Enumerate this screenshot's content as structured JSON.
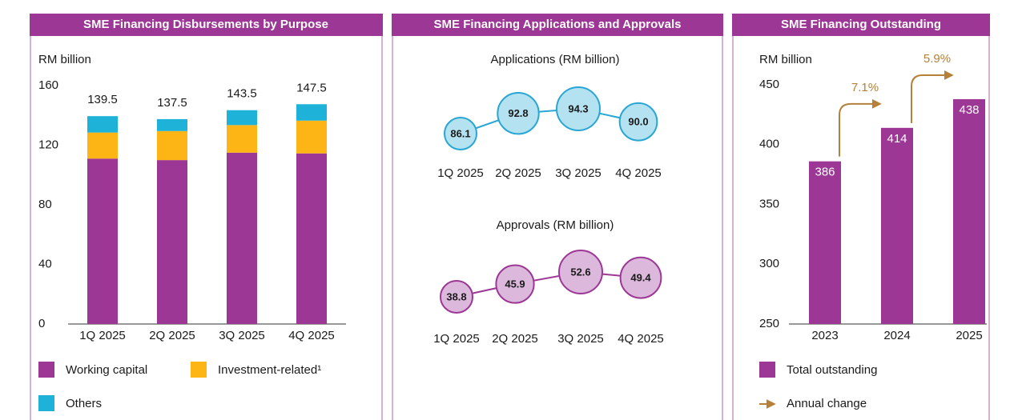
{
  "chart_data": [
    {
      "type": "stacked-bar",
      "title": "SME Financing Disbursements by Purpose",
      "y_label": "RM billion",
      "categories": [
        "1Q 2025",
        "2Q 2025",
        "3Q 2025",
        "4Q 2025"
      ],
      "series": [
        {
          "name": "Working capital",
          "color": "#9c3795",
          "values": [
            111,
            110,
            115,
            114.5
          ]
        },
        {
          "name": "Investment-related¹",
          "color": "#fdb515",
          "values": [
            17.5,
            19.5,
            18.5,
            22
          ]
        },
        {
          "name": "Others",
          "color": "#1eb2d8",
          "values": [
            11,
            8,
            10,
            11
          ]
        }
      ],
      "totals": [
        139.5,
        137.5,
        143.5,
        147.5
      ],
      "ylim": [
        0,
        160
      ],
      "yticks": [
        0,
        40,
        80,
        120,
        160
      ]
    },
    {
      "type": "bubble",
      "title": "SME Financing Applications and Approvals",
      "subtitle": "Applications (RM billion)",
      "categories": [
        "1Q 2025",
        "2Q 2025",
        "3Q 2025",
        "4Q 2025"
      ],
      "values": [
        86.1,
        92.8,
        94.3,
        90
      ],
      "value_labels": [
        "86.1",
        "92.8",
        "94.3",
        "90.0"
      ],
      "color": "#b5e2f1",
      "stroke": "#29a6d4"
    },
    {
      "type": "bubble",
      "subtitle": "Approvals (RM billion)",
      "categories": [
        "1Q 2025",
        "2Q 2025",
        "3Q 2025",
        "4Q 2025"
      ],
      "values": [
        38.8,
        45.9,
        52.6,
        49.4
      ],
      "color": "#dcb9dc",
      "stroke": "#9c3795"
    },
    {
      "type": "bar",
      "title": "SME Financing Outstanding",
      "y_label": "RM billion",
      "categories": [
        "2023",
        "2024",
        "2025"
      ],
      "values": [
        386,
        414,
        438
      ],
      "color": "#9c3795",
      "series_name": "Total outstanding",
      "change_name": "Annual change",
      "change_color": "#b5803a",
      "annotations": [
        "7.1%",
        "5.9%"
      ],
      "ylim": [
        250,
        450
      ],
      "yticks": [
        250,
        300,
        350,
        400,
        450
      ]
    }
  ]
}
